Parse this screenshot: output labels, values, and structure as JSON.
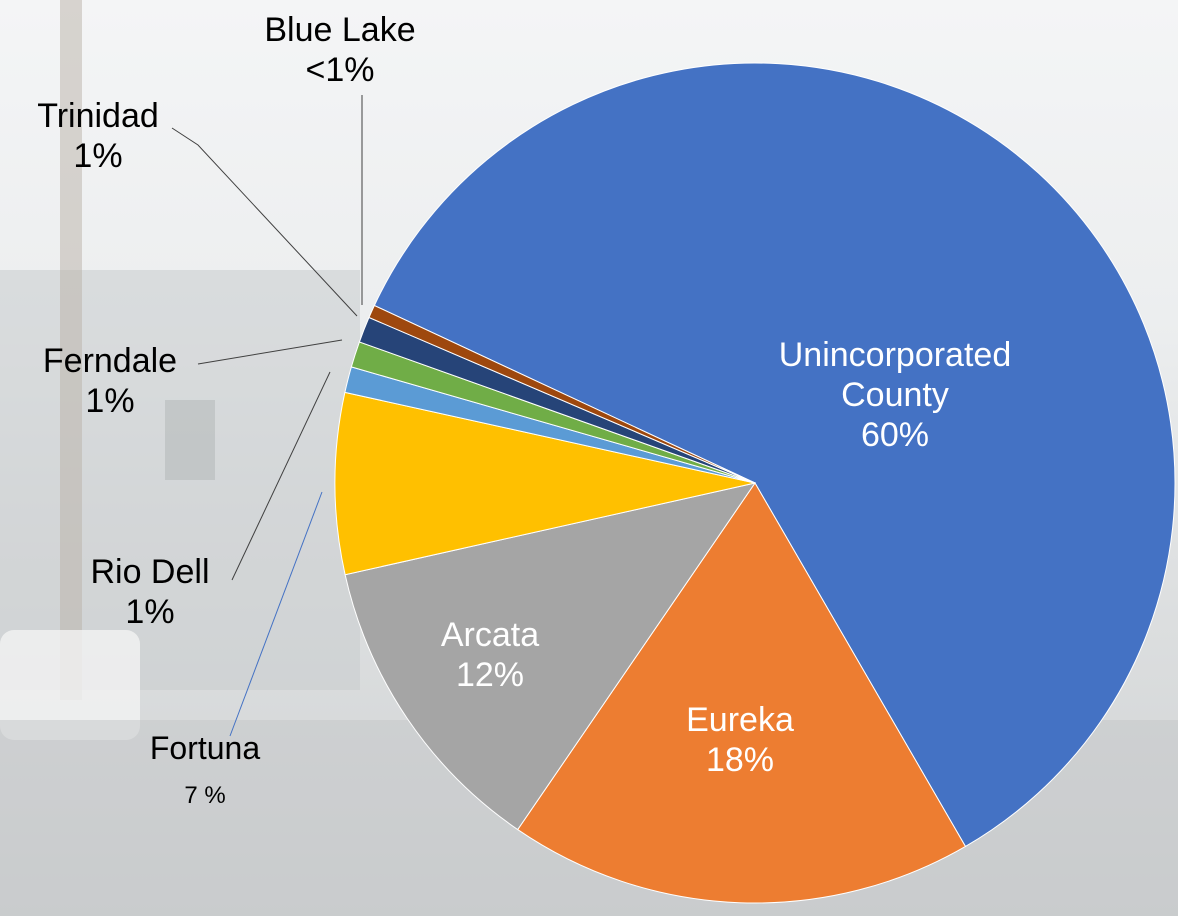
{
  "chart_data": {
    "type": "pie",
    "categories": [
      "Unincorporated County",
      "Eureka",
      "Arcata",
      "Fortuna",
      "Rio Dell",
      "Ferndale",
      "Trinidad",
      "Blue Lake"
    ],
    "values": [
      60,
      18,
      12,
      7,
      1,
      1,
      1,
      0.5
    ],
    "value_labels": [
      "60%",
      "18%",
      "12%",
      "7 %",
      "1%",
      "1%",
      "1%",
      "<1%"
    ],
    "colors": [
      "#4472c4",
      "#ed7d31",
      "#a5a5a5",
      "#ffc000",
      "#5b9bd5",
      "#70ad47",
      "#264478",
      "#9e480e"
    ]
  }
}
